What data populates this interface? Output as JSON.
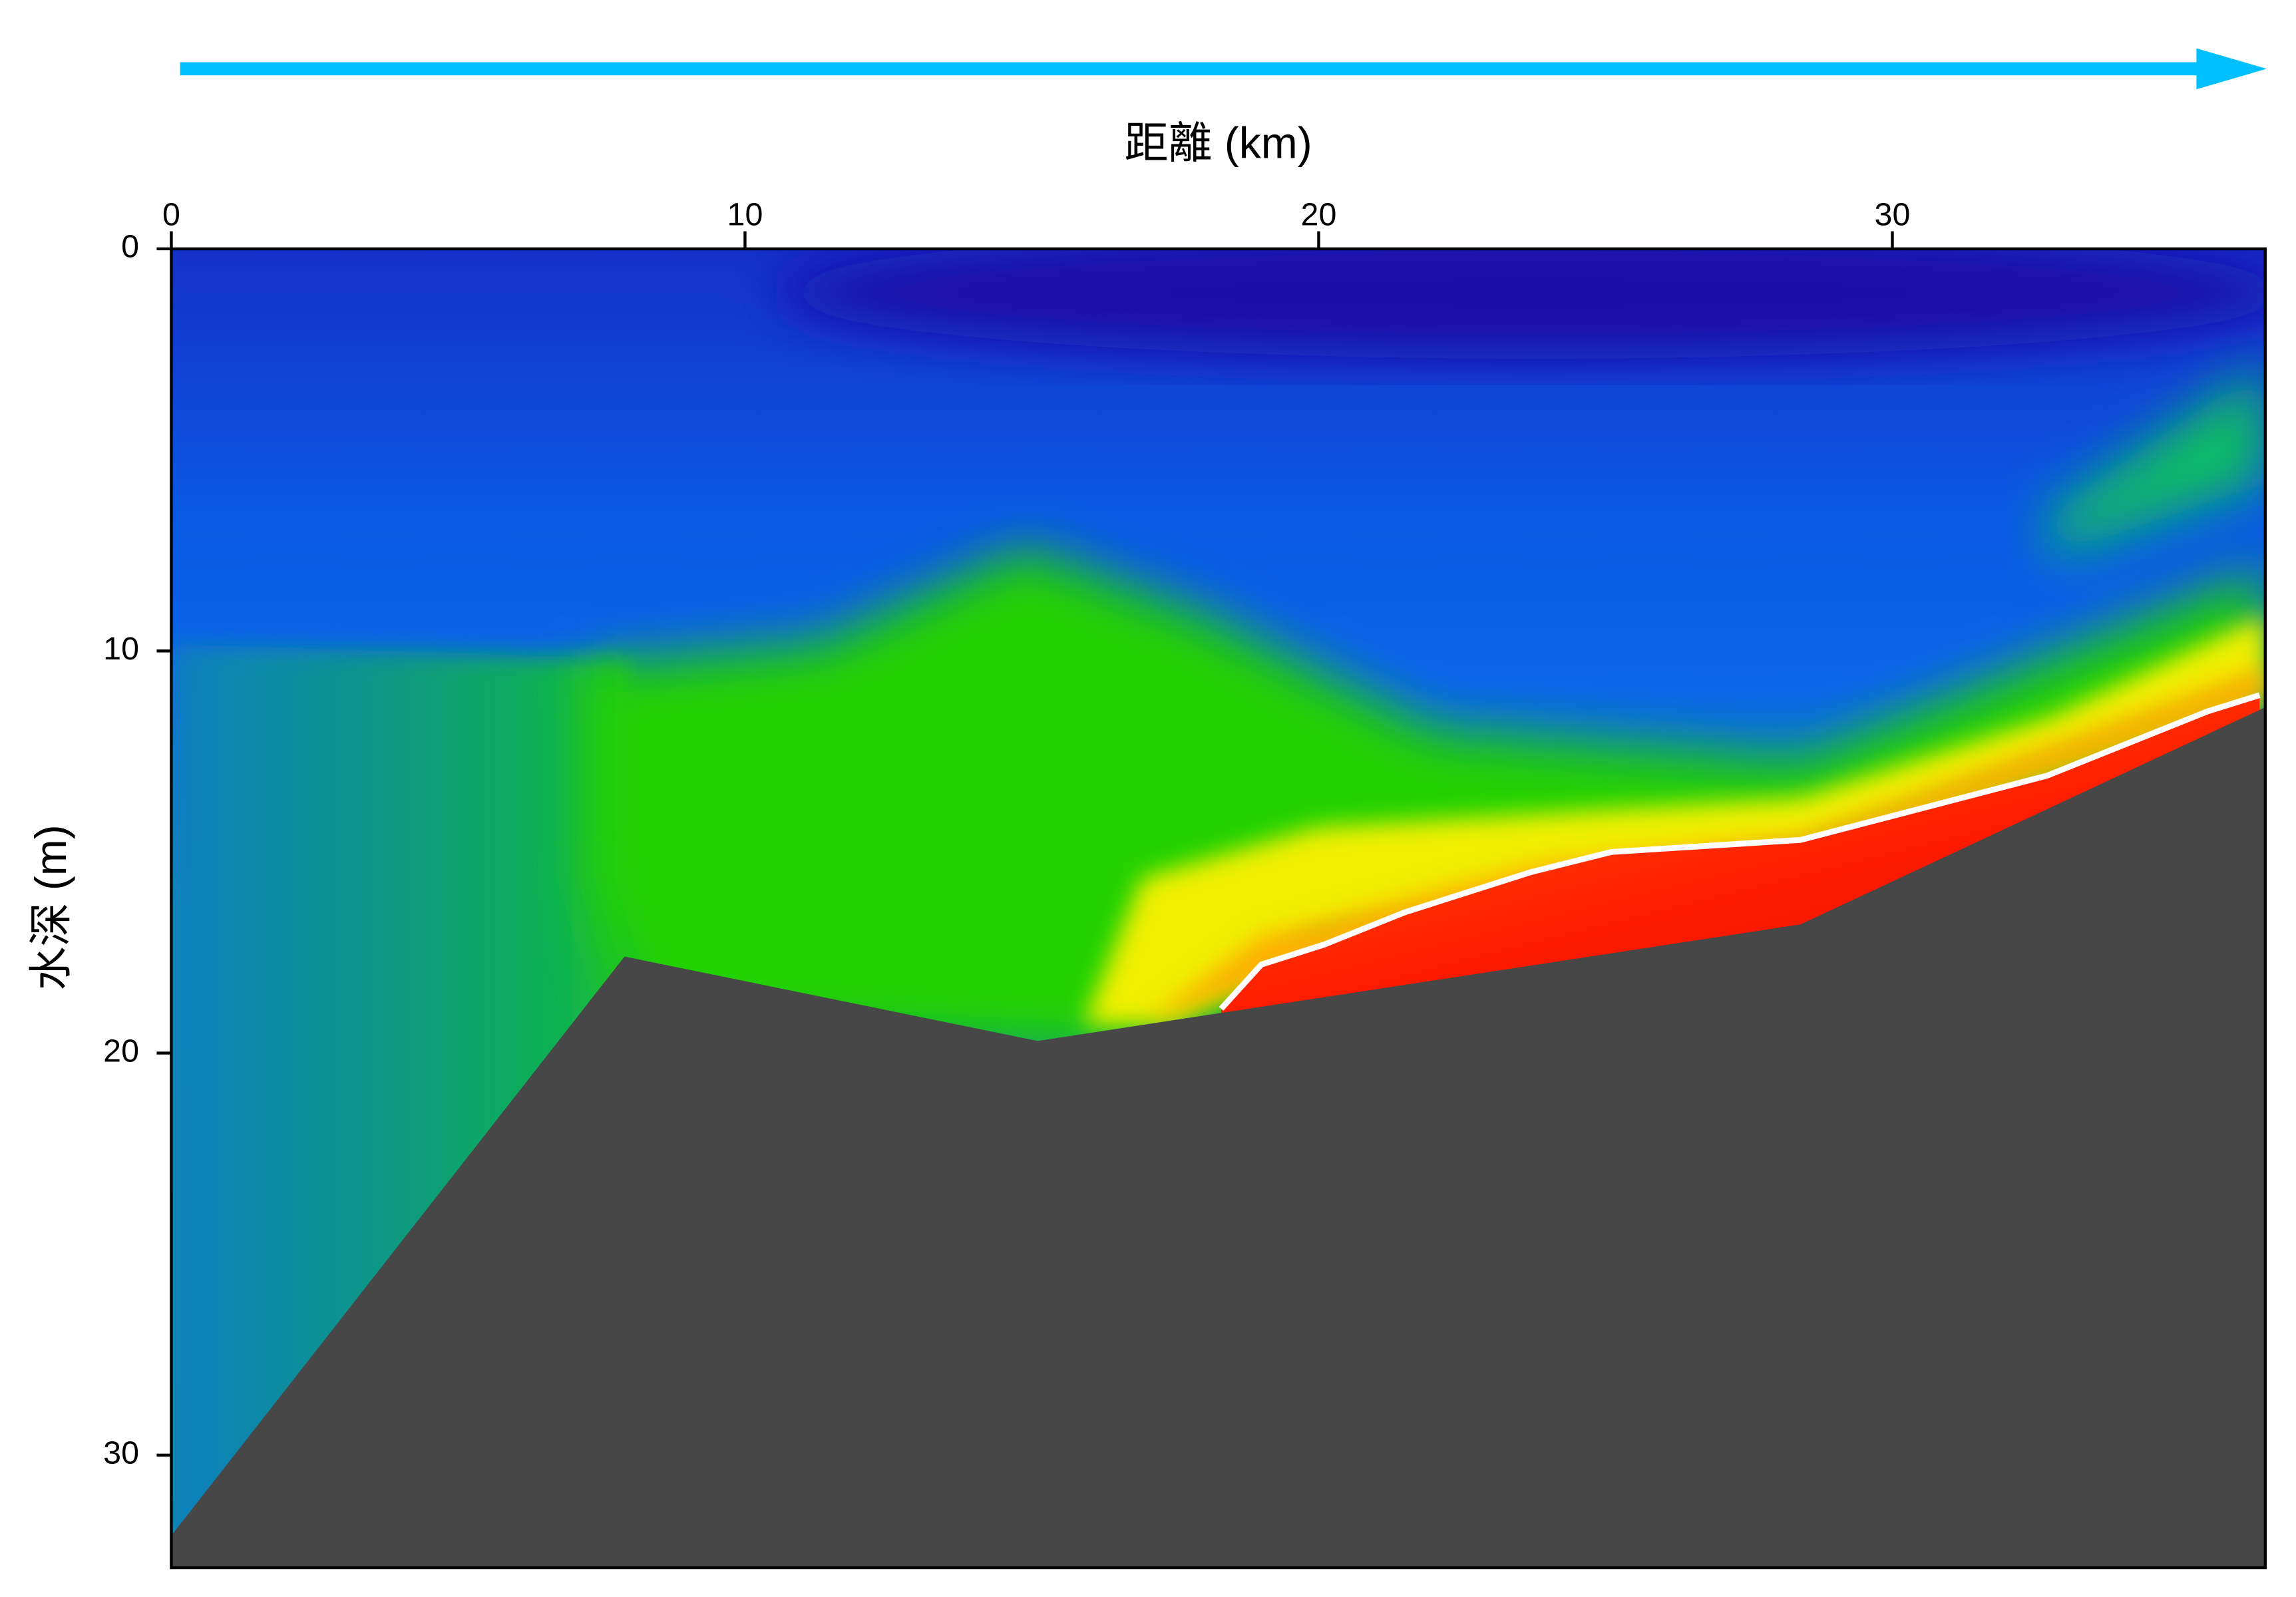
{
  "chart_data": {
    "type": "contour",
    "xlabel": "距離 (km)",
    "ylabel": "水深 (m)",
    "xlim": [
      0,
      36.5
    ],
    "ylim": [
      0,
      32.8
    ],
    "xticks": [
      0,
      10,
      20,
      30
    ],
    "yticks": [
      0,
      10,
      20,
      30
    ],
    "y_inverted": true,
    "x_axis_position": "top",
    "bottom": {
      "x": [
        0,
        7.9,
        15.1,
        28.4,
        36.5
      ],
      "y": [
        32.0,
        17.6,
        19.7,
        16.8,
        11.4
      ],
      "color": "#474747"
    },
    "contour_line": {
      "x": [
        18.3,
        19.0,
        20.1,
        21.5,
        23.7,
        25.1,
        28.4,
        32.7,
        35.5,
        36.4
      ],
      "y": [
        18.9,
        17.8,
        17.3,
        16.5,
        15.5,
        15.0,
        14.7,
        13.1,
        11.5,
        11.1
      ],
      "color": "#ffffff"
    }
  }
}
